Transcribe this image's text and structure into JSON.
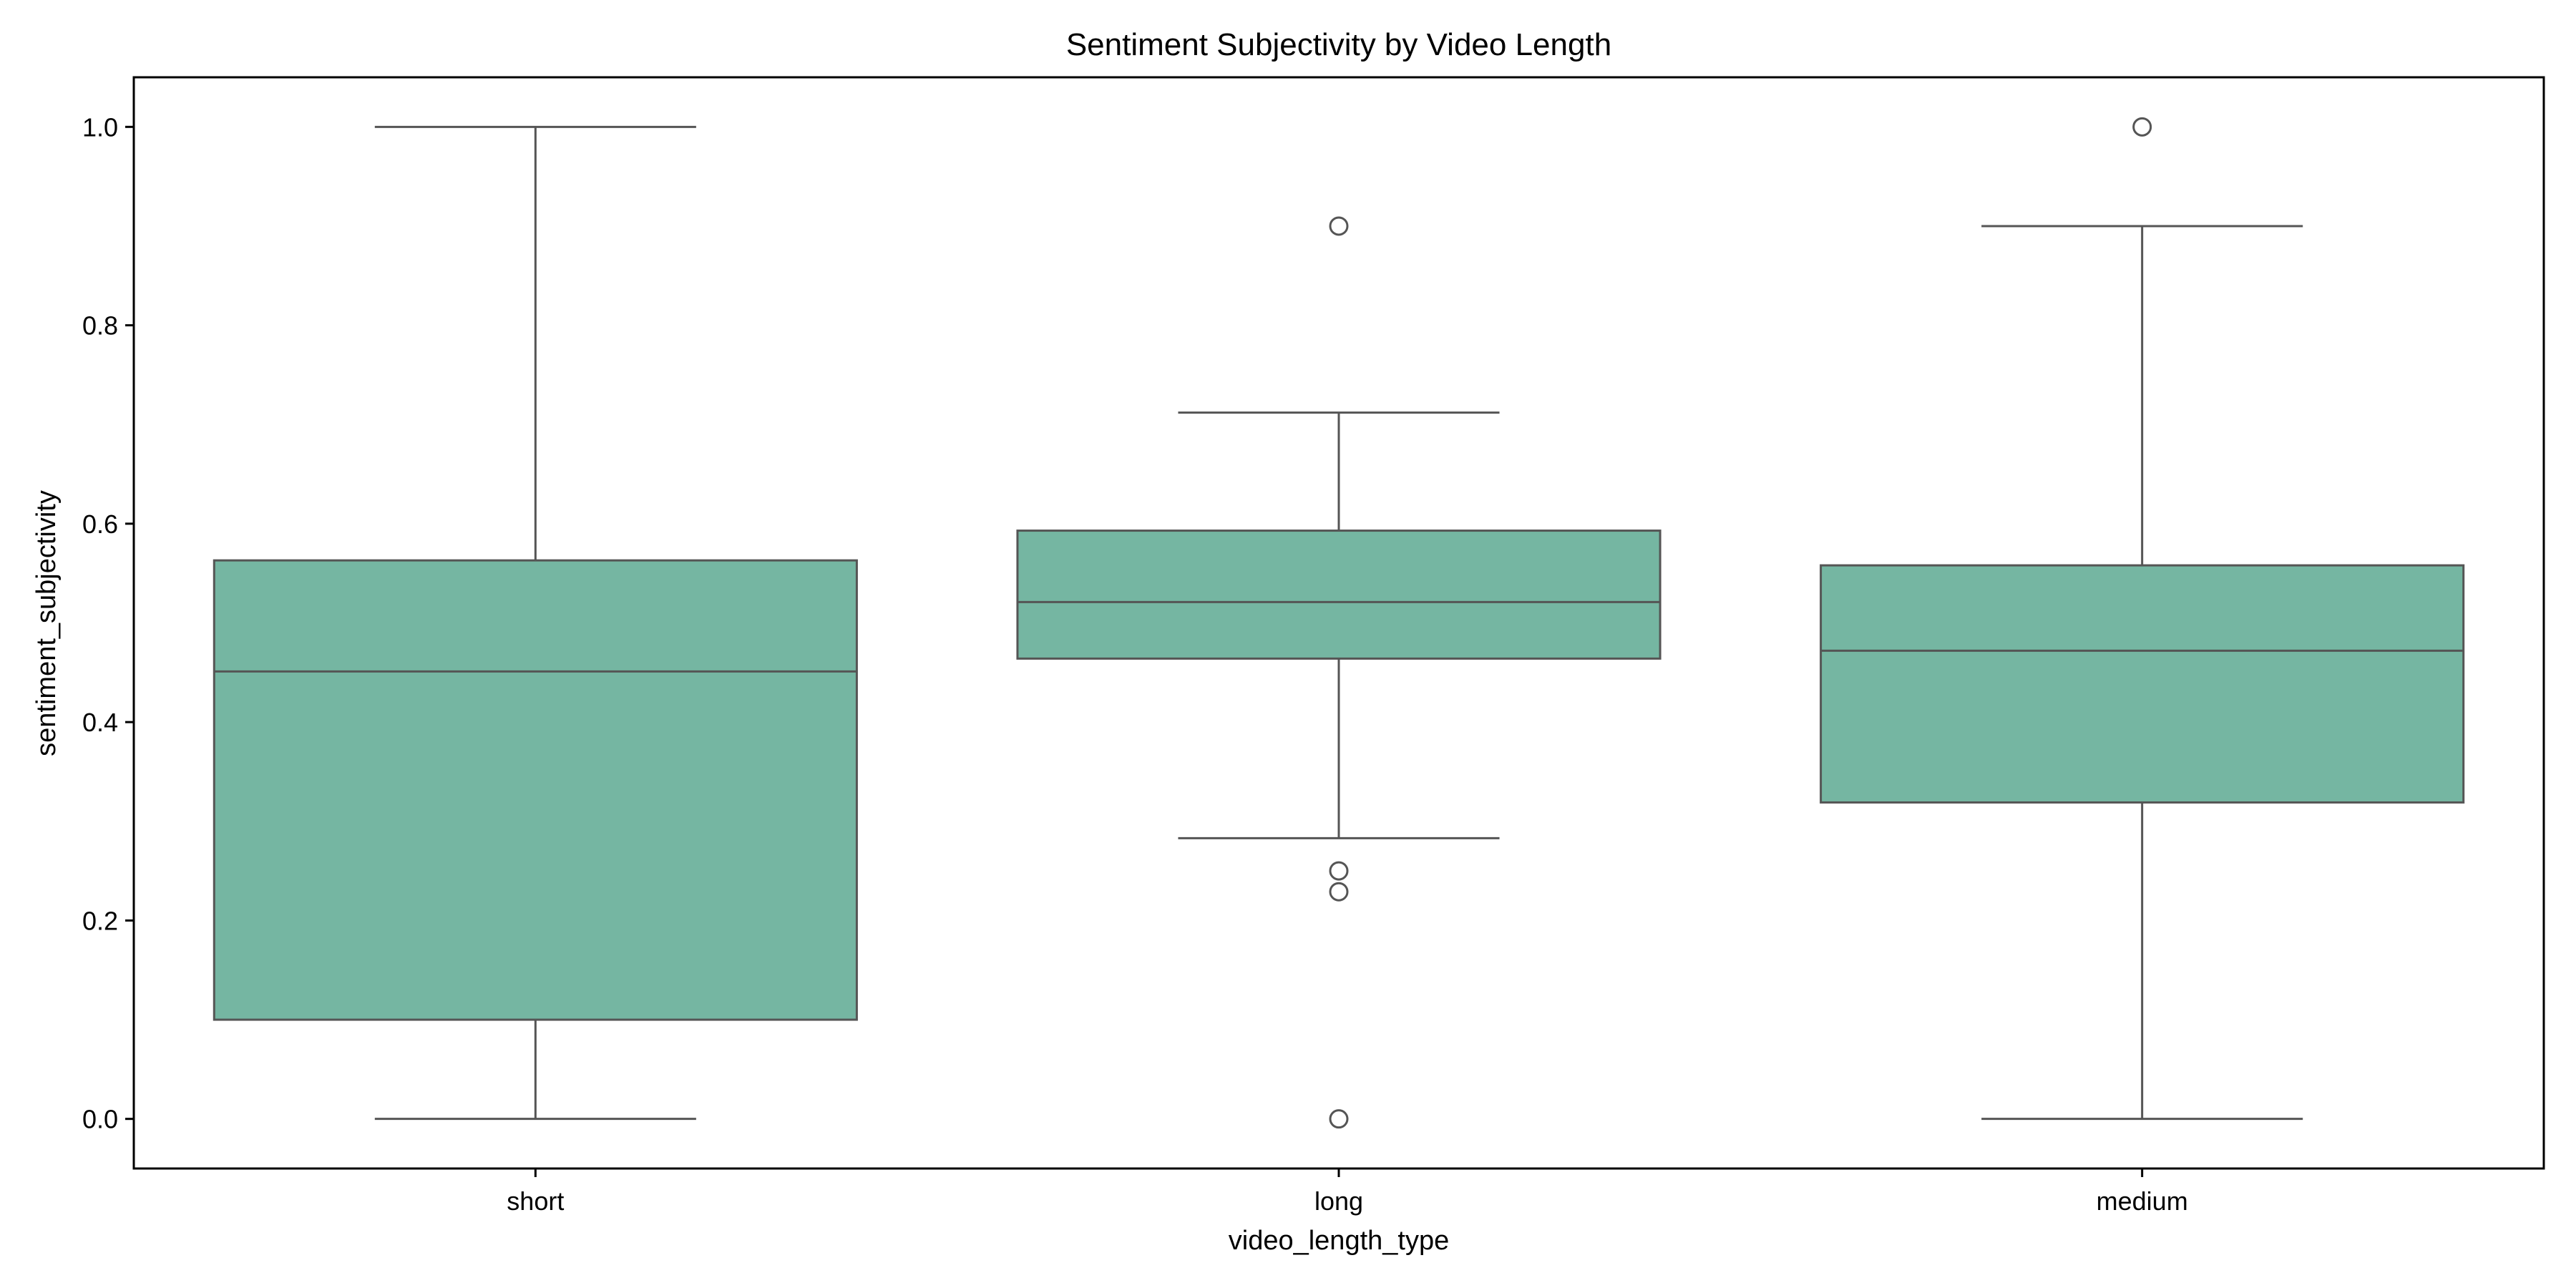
{
  "chart_data": {
    "type": "box",
    "title": "Sentiment Subjectivity by Video Length",
    "xlabel": "video_length_type",
    "ylabel": "sentiment_subjectivity",
    "ylim": [
      -0.05,
      1.05
    ],
    "yticks": [
      0.0,
      0.2,
      0.4,
      0.6,
      0.8,
      1.0
    ],
    "ytick_labels": [
      "0.0",
      "0.2",
      "0.4",
      "0.6",
      "0.8",
      "1.0"
    ],
    "grid": false,
    "legend": "none",
    "box_color": "#75b6a2",
    "line_color": "#555555",
    "categories": [
      "short",
      "long",
      "medium"
    ],
    "boxes": [
      {
        "category": "short",
        "whisker_low": 0.0,
        "q1": 0.1,
        "median": 0.451,
        "q3": 0.563,
        "whisker_high": 1.0,
        "outliers": []
      },
      {
        "category": "long",
        "whisker_low": 0.283,
        "q1": 0.464,
        "median": 0.521,
        "q3": 0.593,
        "whisker_high": 0.712,
        "outliers": [
          0.9,
          0.25,
          0.229,
          0.0
        ]
      },
      {
        "category": "medium",
        "whisker_low": 0.0,
        "q1": 0.319,
        "median": 0.472,
        "q3": 0.558,
        "whisker_high": 0.9,
        "outliers": [
          1.0
        ]
      }
    ]
  }
}
